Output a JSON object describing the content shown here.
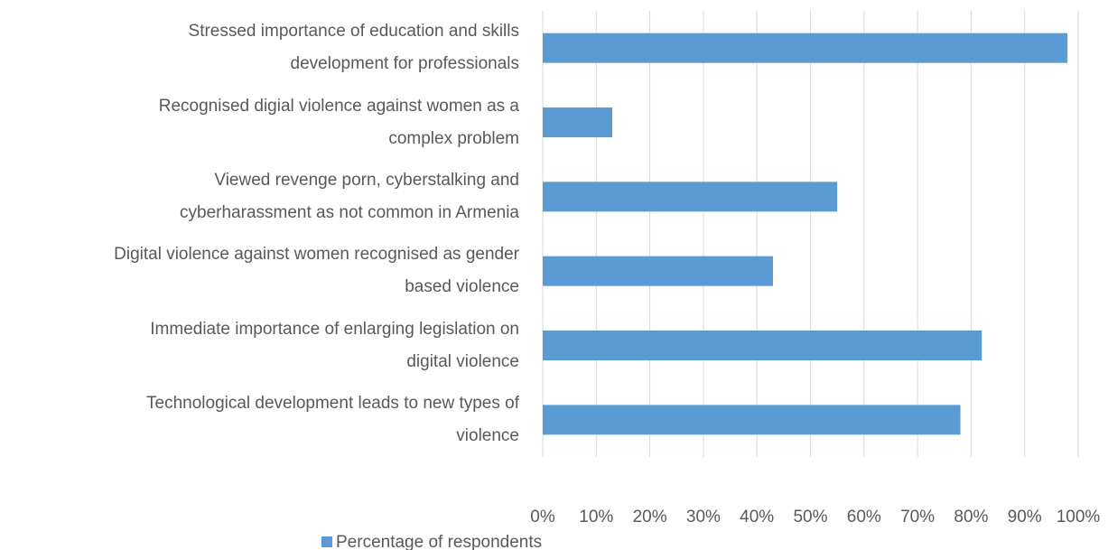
{
  "chart_data": {
    "type": "barh",
    "categories": [
      "Stressed importance of education and skills\ndevelopment for professionals",
      "Recognised digial violence against women as a\ncomplex problem",
      "Viewed revenge porn, cyberstalking and\ncyberharassment as not common in Armenia",
      "Digital violence against women recognised as gender\nbased violence",
      "Immediate importance of enlarging legislation on\ndigital violence",
      "Technological development leads to new types of\nviolence"
    ],
    "series": [
      {
        "name": "Percentage of respondents",
        "color": "#5b9bd5",
        "values": [
          98,
          13,
          55,
          43,
          82,
          78
        ]
      }
    ],
    "xlim": [
      0,
      100
    ],
    "xticks": [
      {
        "value": 0,
        "label": "0%"
      },
      {
        "value": 10,
        "label": "10%"
      },
      {
        "value": 20,
        "label": "20%"
      },
      {
        "value": 30,
        "label": "30%"
      },
      {
        "value": 40,
        "label": "40%"
      },
      {
        "value": 50,
        "label": "50%"
      },
      {
        "value": 60,
        "label": "60%"
      },
      {
        "value": 70,
        "label": "70%"
      },
      {
        "value": 80,
        "label": "80%"
      },
      {
        "value": 90,
        "label": "90%"
      },
      {
        "value": 100,
        "label": "100%"
      }
    ],
    "grid": true,
    "legend": "bottom"
  }
}
